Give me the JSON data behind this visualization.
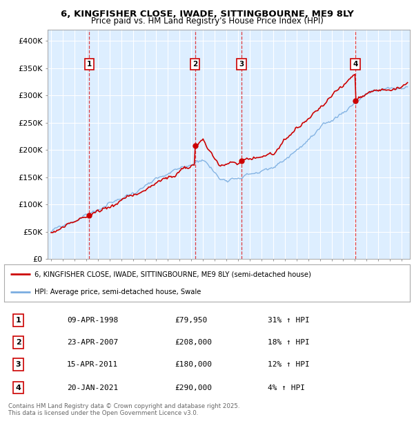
{
  "title1": "6, KINGFISHER CLOSE, IWADE, SITTINGBOURNE, ME9 8LY",
  "title2": "Price paid vs. HM Land Registry's House Price Index (HPI)",
  "ylabel_ticks": [
    "£0",
    "£50K",
    "£100K",
    "£150K",
    "£200K",
    "£250K",
    "£300K",
    "£350K",
    "£400K"
  ],
  "ytick_values": [
    0,
    50000,
    100000,
    150000,
    200000,
    250000,
    300000,
    350000,
    400000
  ],
  "ylim": [
    0,
    420000
  ],
  "sales": [
    {
      "date_num": 1998.27,
      "price": 79950,
      "label": "1"
    },
    {
      "date_num": 2007.31,
      "price": 208000,
      "label": "2"
    },
    {
      "date_num": 2011.29,
      "price": 180000,
      "label": "3"
    },
    {
      "date_num": 2021.05,
      "price": 290000,
      "label": "4"
    }
  ],
  "legend_line1": "6, KINGFISHER CLOSE, IWADE, SITTINGBOURNE, ME9 8LY (semi-detached house)",
  "legend_line2": "HPI: Average price, semi-detached house, Swale",
  "table_rows": [
    [
      "1",
      "09-APR-1998",
      "£79,950",
      "31% ↑ HPI"
    ],
    [
      "2",
      "23-APR-2007",
      "£208,000",
      "18% ↑ HPI"
    ],
    [
      "3",
      "15-APR-2011",
      "£180,000",
      "12% ↑ HPI"
    ],
    [
      "4",
      "20-JAN-2021",
      "£290,000",
      "4% ↑ HPI"
    ]
  ],
  "footnote": "Contains HM Land Registry data © Crown copyright and database right 2025.\nThis data is licensed under the Open Government Licence v3.0.",
  "line_color_red": "#cc0000",
  "line_color_blue": "#7aade0",
  "bg_color": "#ddeeff",
  "grid_color": "#ffffff",
  "xlim_start": 1994.7,
  "xlim_end": 2025.7
}
